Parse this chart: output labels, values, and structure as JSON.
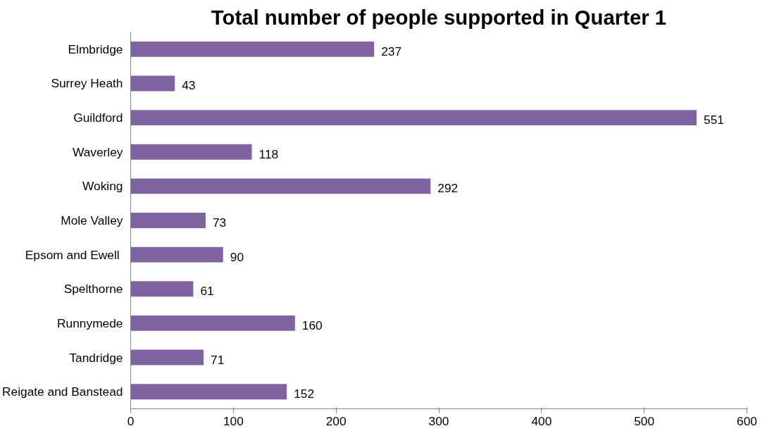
{
  "chart_data": {
    "type": "bar",
    "orientation": "horizontal",
    "title": "Total number of people supported in Quarter 1",
    "categories": [
      "Elmbridge",
      "Surrey Heath",
      "Guildford",
      "Waverley",
      "Woking",
      "Mole Valley",
      "Epsom and  Ewell",
      "Spelthorne",
      "Runnymede",
      "Tandridge",
      "Reigate and Banstead"
    ],
    "values": [
      237,
      43,
      551,
      118,
      292,
      73,
      90,
      61,
      160,
      71,
      152
    ],
    "color": "#8064a2",
    "xlim": [
      0,
      600
    ],
    "xticks": [
      0,
      100,
      200,
      300,
      400,
      500,
      600
    ],
    "grid": false,
    "data_labels": true
  }
}
